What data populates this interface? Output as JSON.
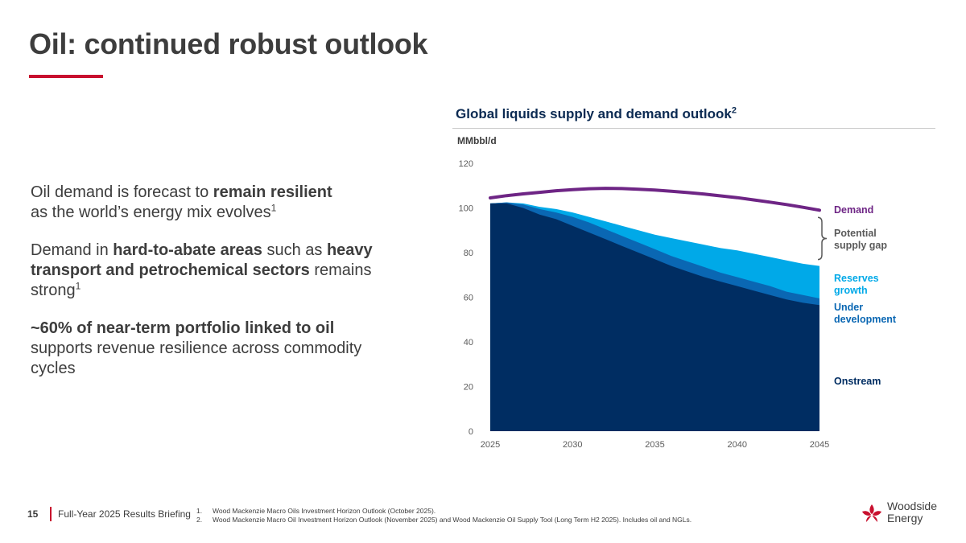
{
  "title": "Oil: continued robust outlook",
  "bullets": [
    {
      "pre": "Oil demand is forecast to ",
      "b1": "remain resilient",
      "mid": " as the world’s energy mix evolves",
      "b2": "",
      "post": "",
      "sup": "1"
    },
    {
      "pre": "Demand in ",
      "b1": "hard-to-abate areas",
      "mid": " such as ",
      "b2": "heavy transport and petrochemical sectors",
      "post": " remains strong",
      "sup": "1"
    },
    {
      "pre": "",
      "b1": "~60% of near-term portfolio linked to oil",
      "mid": " supports revenue resilience across commodity cycles",
      "b2": "",
      "post": "",
      "sup": ""
    }
  ],
  "chart_title": "Global liquids supply and demand outlook",
  "chart_title_sup": "2",
  "unit_label": "MMbbl/d",
  "chart_data": {
    "type": "area",
    "title": "Global liquids supply and demand outlook",
    "ylabel": "MMbbl/d",
    "ylim": [
      0,
      120
    ],
    "yticks": [
      0,
      20,
      40,
      60,
      80,
      100,
      120
    ],
    "xticks": [
      2025,
      2030,
      2035,
      2040,
      2045
    ],
    "xlim": [
      2025,
      2045
    ],
    "x": [
      2025,
      2026,
      2027,
      2028,
      2029,
      2030,
      2031,
      2032,
      2033,
      2034,
      2035,
      2036,
      2037,
      2038,
      2039,
      2040,
      2041,
      2042,
      2043,
      2044,
      2045
    ],
    "series": [
      {
        "name": "Onstream",
        "color": "#002d62",
        "values": [
          102,
          102,
          100,
          97,
          95,
          92,
          89,
          86,
          83,
          80,
          77,
          74,
          71.5,
          69,
          67,
          65,
          63,
          61,
          59,
          57.5,
          56.5
        ]
      },
      {
        "name": "Under development",
        "color": "#0a67b3",
        "values": [
          102,
          102.5,
          101.5,
          99.5,
          98,
          96,
          93.5,
          90.5,
          87.5,
          84.5,
          81.5,
          78.5,
          76,
          73.5,
          71,
          69,
          67,
          65,
          62.5,
          61,
          59.5
        ]
      },
      {
        "name": "Reserves growth",
        "color": "#00a9e8",
        "values": [
          102,
          102.5,
          102,
          100.5,
          99.5,
          98,
          96,
          94,
          92,
          90,
          88,
          86.5,
          85,
          83.5,
          82,
          81,
          79.5,
          78,
          76.5,
          75,
          74
        ]
      },
      {
        "name": "Demand",
        "color": "#6e2585",
        "values": [
          104.5,
          105.5,
          106.3,
          107,
          107.7,
          108.2,
          108.6,
          108.8,
          108.7,
          108.4,
          108,
          107.5,
          106.9,
          106.2,
          105.4,
          104.6,
          103.6,
          102.6,
          101.5,
          100.3,
          99
        ]
      }
    ],
    "annotations": [
      "Potential supply gap"
    ]
  },
  "legend": {
    "demand": "Demand",
    "gap_line1": "Potential",
    "gap_line2": "supply gap",
    "reserves_line1": "Reserves",
    "reserves_line2": "growth",
    "underdev_line1": "Under",
    "underdev_line2": "development",
    "onstream": "Onstream"
  },
  "colors": {
    "accent": "#c8102e",
    "navy": "#002d62",
    "mid_blue": "#0a67b3",
    "light_blue": "#00a9e8",
    "purple": "#6e2585"
  },
  "footer": {
    "page_number": "15",
    "label": "Full-Year 2025 Results Briefing",
    "footnotes": [
      {
        "num": "1.",
        "text": "Wood Mackenzie Macro Oils Investment Horizon Outlook (October 2025)."
      },
      {
        "num": "2.",
        "text": "Wood Mackenzie Macro Oil Investment Horizon Outlook (November 2025) and Wood Mackenzie Oil Supply Tool (Long Term H2 2025). Includes oil and NGLs."
      }
    ]
  },
  "logo": {
    "line1": "Woodside",
    "line2": "Energy"
  }
}
